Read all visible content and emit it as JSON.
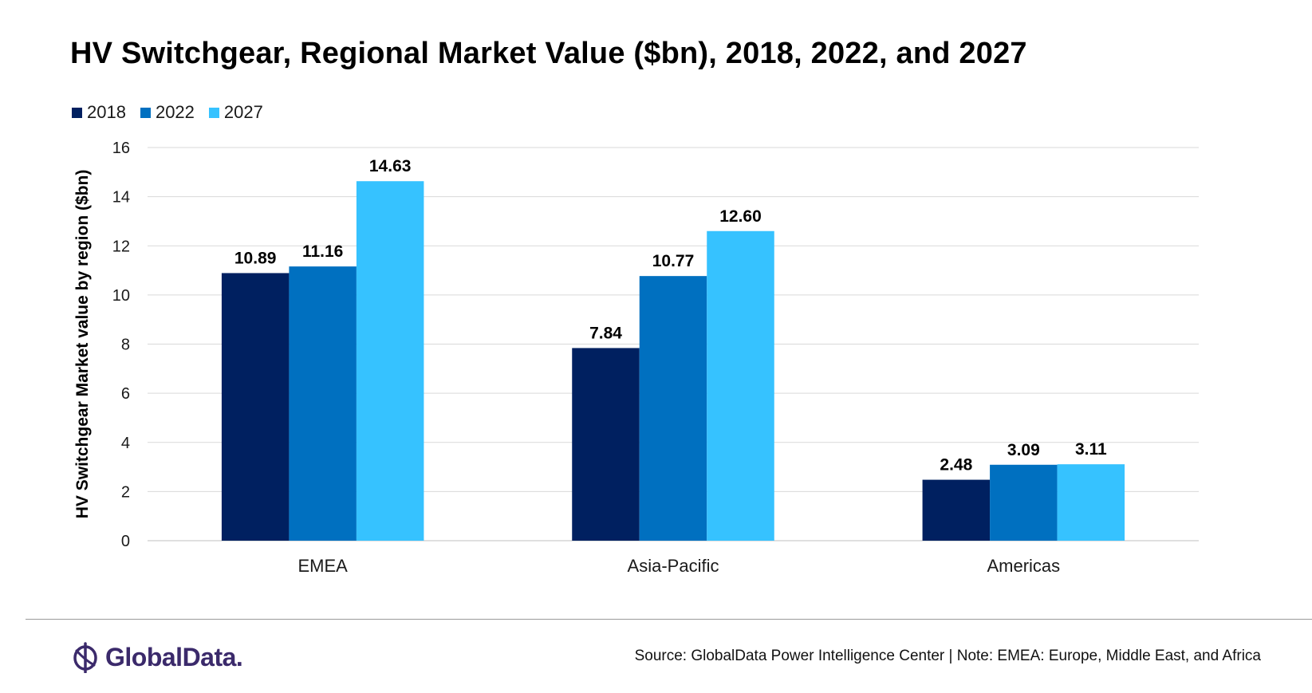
{
  "chart_data": {
    "type": "bar",
    "title": "HV Switchgear, Regional Market Value ($bn), 2018, 2022, and 2027",
    "ylabel": "HV Switchgear Market value by region ($bn)",
    "xlabel": "",
    "categories": [
      "EMEA",
      "Asia-Pacific",
      "Americas"
    ],
    "series": [
      {
        "name": "2018",
        "color": "#002060",
        "values": [
          10.89,
          7.84,
          2.48
        ],
        "labels": [
          "10.89",
          "7.84",
          "2.48"
        ]
      },
      {
        "name": "2022",
        "color": "#0070C0",
        "values": [
          11.16,
          10.77,
          3.09
        ],
        "labels": [
          "11.16",
          "10.77",
          "3.09"
        ]
      },
      {
        "name": "2027",
        "color": "#36C2FF",
        "values": [
          14.63,
          12.6,
          3.11
        ],
        "labels": [
          "14.63",
          "12.60",
          "3.11"
        ]
      }
    ],
    "ylim": [
      0,
      16
    ],
    "yticks": [
      0,
      2,
      4,
      6,
      8,
      10,
      12,
      14,
      16
    ],
    "grid": true,
    "legend_position": "top-left"
  },
  "footer": {
    "brand": "GlobalData.",
    "source": "Source: GlobalData Power Intelligence Center | Note: EMEA: Europe, Middle East, and Africa"
  },
  "icons": {
    "logo": "globaldata-logo-icon"
  }
}
